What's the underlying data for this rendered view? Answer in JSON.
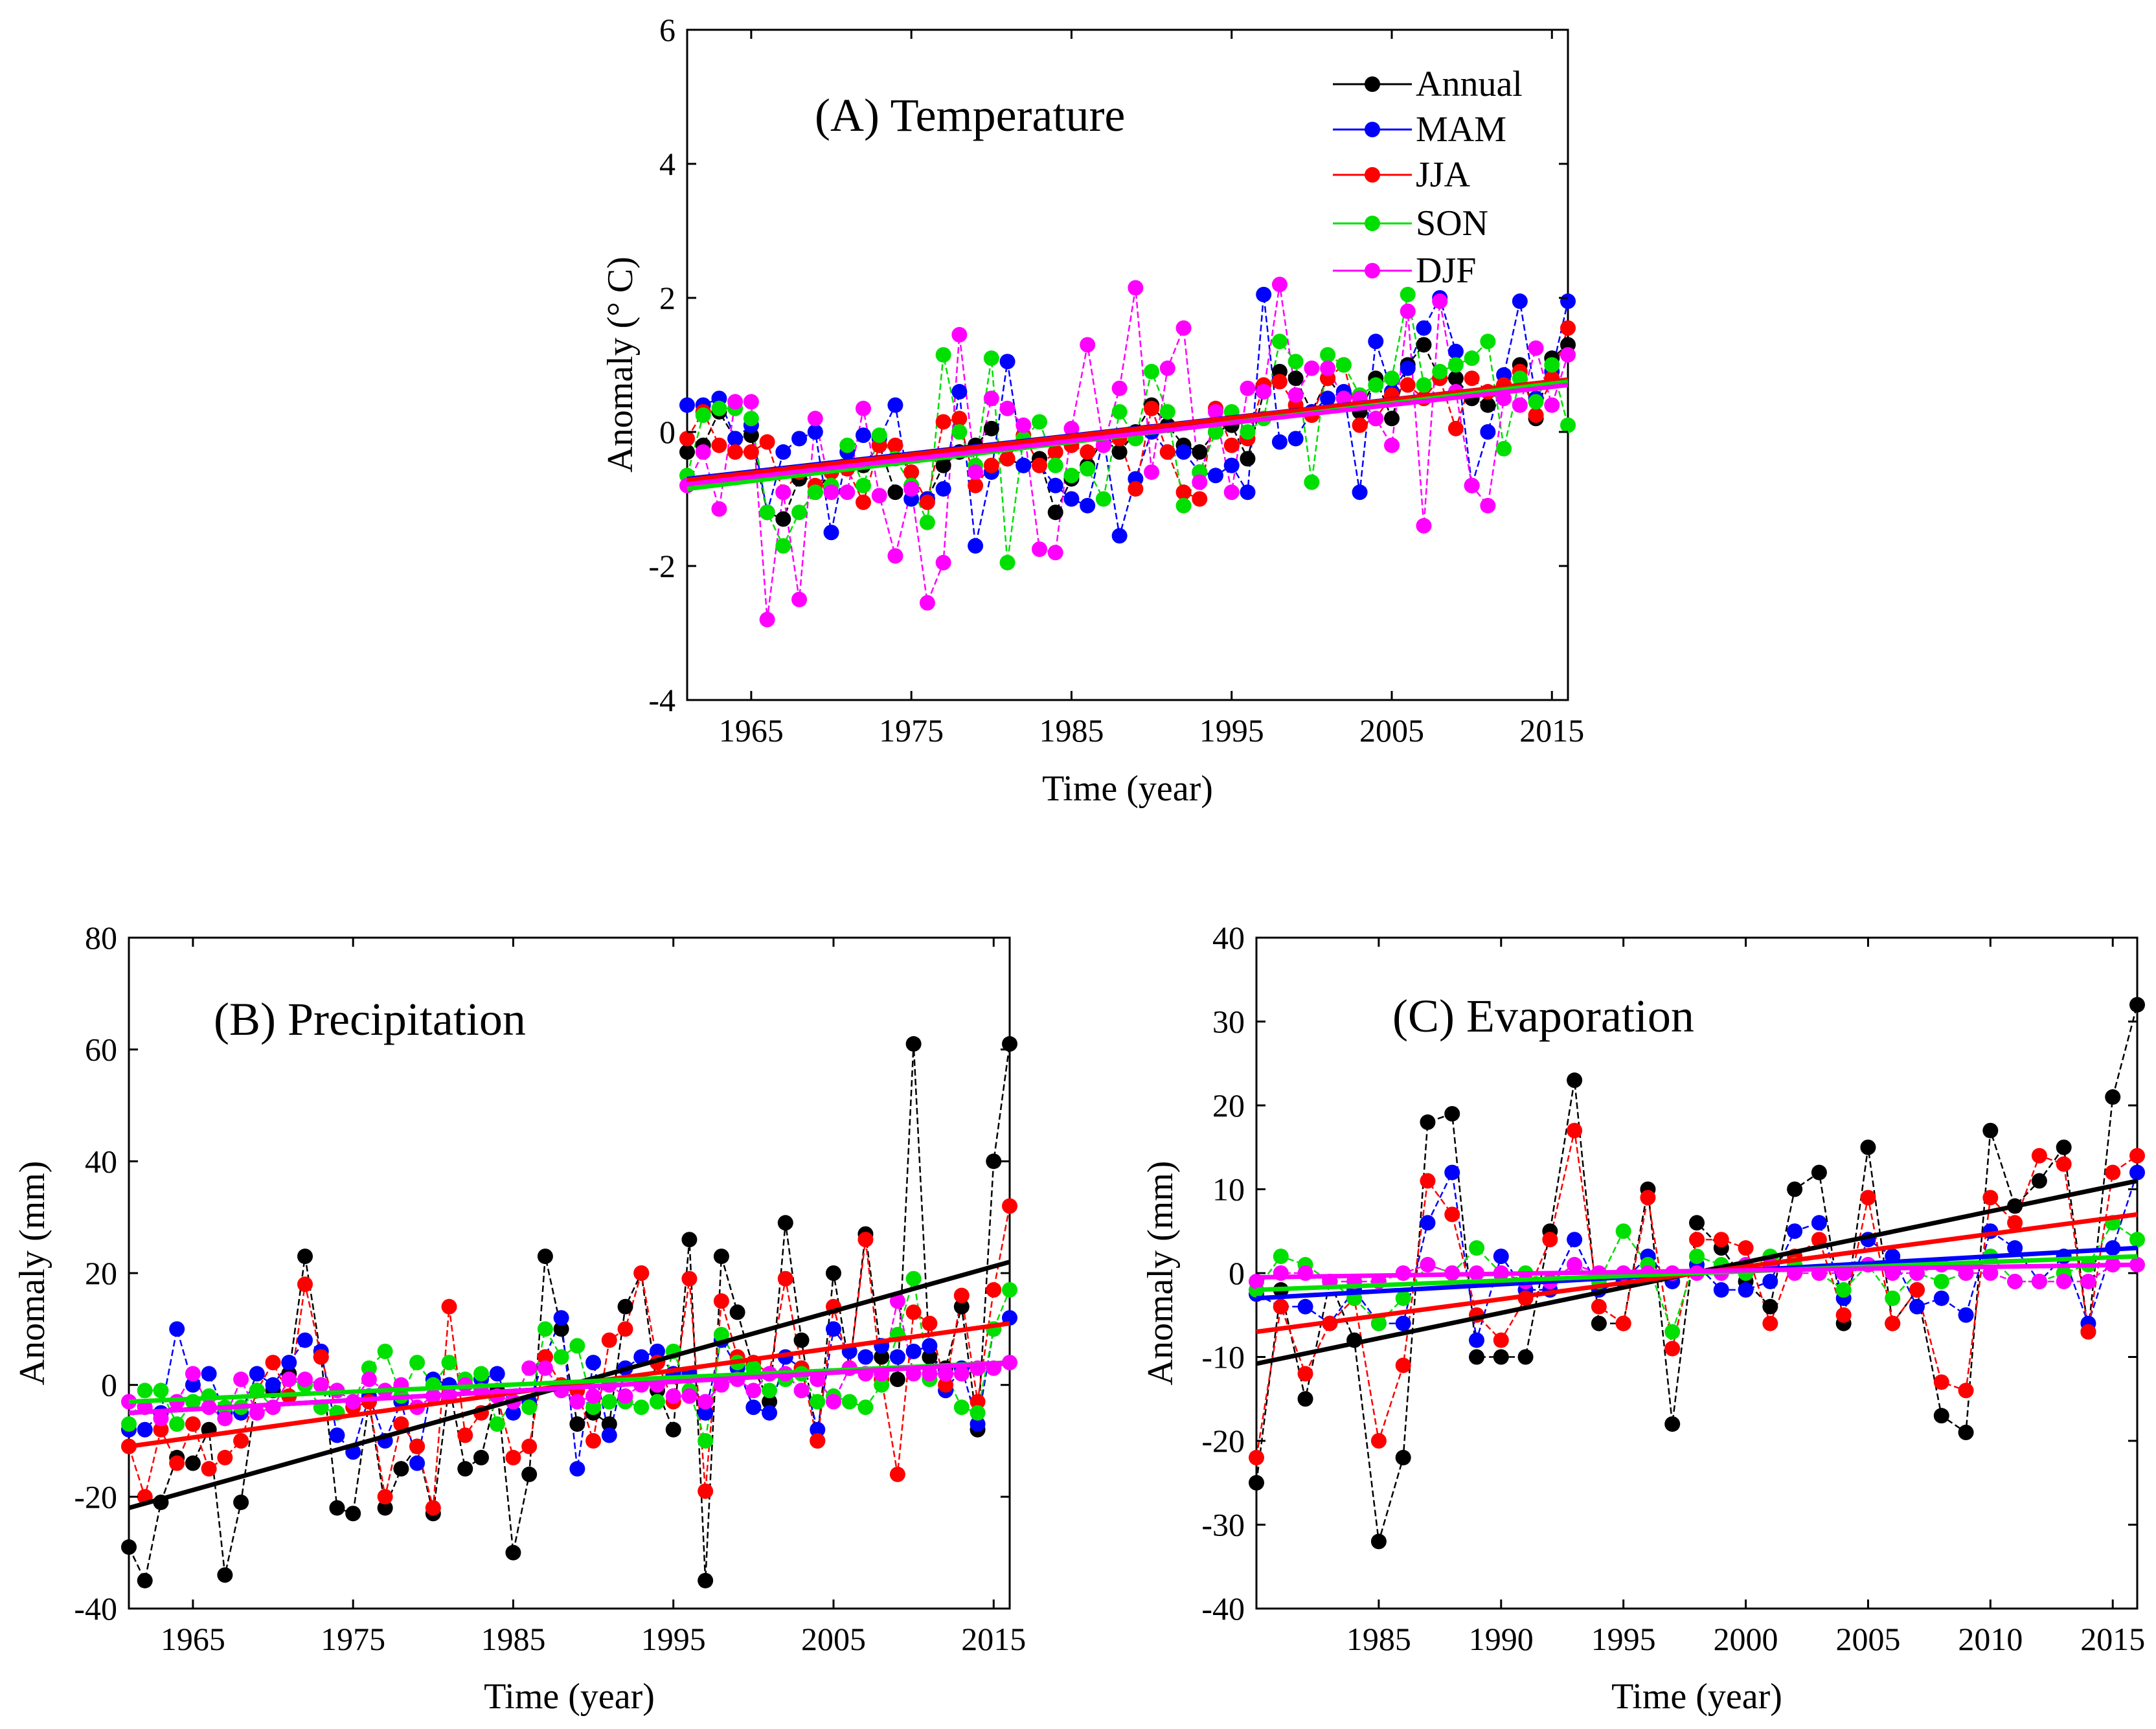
{
  "chart_data": [
    {
      "id": "A",
      "type": "line",
      "title": "(A) Temperature",
      "xlabel": "Time (year)",
      "ylabel": "Anomaly (° C)",
      "xlim": [
        1961,
        2016
      ],
      "ylim": [
        -4,
        6
      ],
      "xticks": [
        1965,
        1975,
        1985,
        1995,
        2005,
        2015
      ],
      "xtick_labels": [
        "1965",
        "1975",
        "1985",
        "1995",
        "2005",
        "2015"
      ],
      "yticks": [
        -4,
        -2,
        0,
        2,
        4,
        6
      ],
      "ytick_labels": [
        "-4",
        "-2",
        "0",
        "2",
        "4",
        "6"
      ],
      "legend_position": "top-right",
      "x": [
        1961,
        1962,
        1963,
        1964,
        1965,
        1966,
        1967,
        1968,
        1969,
        1970,
        1971,
        1972,
        1973,
        1974,
        1975,
        1976,
        1977,
        1978,
        1979,
        1980,
        1981,
        1982,
        1983,
        1984,
        1985,
        1986,
        1987,
        1988,
        1989,
        1990,
        1991,
        1992,
        1993,
        1994,
        1995,
        1996,
        1997,
        1998,
        1999,
        2000,
        2001,
        2002,
        2003,
        2004,
        2005,
        2006,
        2007,
        2008,
        2009,
        2010,
        2011,
        2012,
        2013,
        2014,
        2015,
        2016
      ],
      "series": [
        {
          "name": "Annual",
          "color": "#000000",
          "values": [
            -0.3,
            -0.2,
            0.3,
            -0.1,
            -0.05,
            -1.2,
            -1.3,
            -0.7,
            -0.9,
            -0.6,
            -0.5,
            -0.5,
            -0.2,
            -0.9,
            -0.8,
            -1.0,
            -0.5,
            -0.3,
            -0.2,
            0.05,
            -0.4,
            -0.5,
            -0.4,
            -1.2,
            -0.7,
            -0.5,
            -0.1,
            -0.3,
            0.0,
            0.4,
            0.1,
            -0.2,
            -0.3,
            0.0,
            0.1,
            -0.4,
            0.6,
            0.9,
            0.8,
            0.3,
            0.8,
            0.5,
            0.3,
            0.8,
            0.2,
            1.0,
            1.3,
            0.8,
            0.8,
            0.5,
            0.4,
            0.7,
            1.0,
            0.2,
            1.1,
            1.3
          ],
          "trend": [
            -0.75,
            0.72
          ]
        },
        {
          "name": "MAM",
          "color": "#0000ff",
          "values": [
            0.4,
            0.4,
            0.5,
            -0.1,
            0.1,
            -1.2,
            -0.3,
            -0.1,
            0.0,
            -1.5,
            -0.3,
            -0.05,
            -0.1,
            0.4,
            -1.0,
            -1.0,
            -0.85,
            0.6,
            -1.7,
            -0.6,
            1.05,
            -0.5,
            -0.5,
            -0.8,
            -1.0,
            -1.1,
            -0.1,
            -1.55,
            -0.7,
            0.0,
            -0.3,
            -0.3,
            -0.6,
            -0.65,
            -0.5,
            -0.9,
            2.05,
            -0.15,
            -0.1,
            0.3,
            0.5,
            0.6,
            -0.9,
            1.35,
            0.6,
            0.95,
            1.55,
            2.0,
            1.2,
            -0.8,
            0.0,
            0.85,
            1.95,
            0.5,
            0.9,
            1.95
          ],
          "trend": [
            -0.7,
            0.78
          ]
        },
        {
          "name": "JJA",
          "color": "#ff0000",
          "values": [
            -0.1,
            0.3,
            -0.2,
            -0.3,
            -0.3,
            -0.15,
            -0.9,
            -0.6,
            -0.8,
            -0.6,
            -0.55,
            -1.05,
            -0.2,
            -0.2,
            -0.6,
            -1.05,
            0.15,
            0.2,
            -0.8,
            -0.5,
            -0.4,
            -0.05,
            -0.5,
            -0.3,
            -0.2,
            -0.3,
            -0.2,
            -0.1,
            -0.85,
            0.35,
            -0.3,
            -0.9,
            -1.0,
            0.35,
            -0.2,
            -0.1,
            0.7,
            0.75,
            0.4,
            0.25,
            0.8,
            1.0,
            0.1,
            0.2,
            0.55,
            0.7,
            0.5,
            0.8,
            0.05,
            0.8,
            0.6,
            0.7,
            0.9,
            0.25,
            0.8,
            1.55
          ],
          "trend": [
            -0.72,
            0.78
          ]
        },
        {
          "name": "SON",
          "color": "#00e000",
          "values": [
            -0.65,
            0.25,
            0.35,
            0.35,
            0.2,
            -1.2,
            -1.7,
            -1.2,
            -0.9,
            -0.8,
            -0.2,
            -0.8,
            -0.05,
            -0.4,
            -0.8,
            -1.35,
            1.15,
            0.0,
            -0.5,
            1.1,
            -1.95,
            -0.1,
            0.15,
            -0.5,
            -0.65,
            -0.55,
            -1.0,
            0.3,
            -0.1,
            0.9,
            0.3,
            -1.1,
            -0.6,
            0.0,
            0.3,
            0.0,
            0.2,
            1.35,
            1.05,
            -0.75,
            1.15,
            1.0,
            0.55,
            0.7,
            0.8,
            2.05,
            0.7,
            0.9,
            1.0,
            1.1,
            1.35,
            -0.25,
            0.8,
            0.45,
            1.0,
            0.1
          ],
          "trend": [
            -0.85,
            0.75
          ]
        },
        {
          "name": "DJF",
          "color": "#ff00ff",
          "values": [
            -0.8,
            -0.3,
            -1.15,
            0.45,
            0.45,
            -2.8,
            -0.9,
            -2.5,
            0.2,
            -0.9,
            -0.9,
            0.35,
            -0.95,
            -1.85,
            -0.85,
            -2.55,
            -1.95,
            1.45,
            -0.6,
            0.5,
            0.35,
            0.1,
            -1.75,
            -1.8,
            0.05,
            1.3,
            -0.2,
            0.65,
            2.15,
            -0.6,
            0.95,
            1.55,
            -0.75,
            0.3,
            -0.9,
            0.65,
            0.6,
            2.2,
            0.55,
            0.95,
            0.95,
            0.5,
            0.5,
            0.2,
            -0.2,
            1.8,
            -1.4,
            1.95,
            0.6,
            -0.8,
            -1.1,
            0.5,
            0.4,
            1.25,
            0.4,
            1.15
          ],
          "trend": [
            -0.78,
            0.7
          ]
        }
      ]
    },
    {
      "id": "B",
      "type": "line",
      "title": "(B) Precipitation",
      "xlabel": "Time (year)",
      "ylabel": "Anomaly (mm)",
      "xlim": [
        1961,
        2016
      ],
      "ylim": [
        -40,
        80
      ],
      "xticks": [
        1965,
        1975,
        1985,
        1995,
        2005,
        2015
      ],
      "xtick_labels": [
        "1965",
        "1975",
        "1985",
        "1995",
        "2005",
        "2015"
      ],
      "yticks": [
        -40,
        -20,
        0,
        20,
        40,
        60,
        80
      ],
      "ytick_labels": [
        "-40",
        "-20",
        "0",
        "20",
        "40",
        "60",
        "80"
      ],
      "x": [
        1961,
        1962,
        1963,
        1964,
        1965,
        1966,
        1967,
        1968,
        1969,
        1970,
        1971,
        1972,
        1973,
        1974,
        1975,
        1976,
        1977,
        1978,
        1979,
        1980,
        1981,
        1982,
        1983,
        1984,
        1985,
        1986,
        1987,
        1988,
        1989,
        1990,
        1991,
        1992,
        1993,
        1994,
        1995,
        1996,
        1997,
        1998,
        1999,
        2000,
        2001,
        2002,
        2003,
        2004,
        2005,
        2006,
        2007,
        2008,
        2009,
        2010,
        2011,
        2012,
        2013,
        2014,
        2015,
        2016
      ],
      "series": [
        {
          "name": "Annual",
          "color": "#000000",
          "values": [
            -29,
            -35,
            -21,
            -13,
            -14,
            -8,
            -34,
            -21,
            -1,
            -1,
            2,
            23,
            5,
            -22,
            -23,
            -3,
            -22,
            -15,
            -11,
            -23,
            0,
            -15,
            -13,
            -1,
            -30,
            -16,
            23,
            10,
            -7,
            -5,
            -7,
            14,
            20,
            -1,
            -8,
            26,
            -35,
            23,
            13,
            3,
            -3,
            29,
            8,
            -10,
            20,
            3,
            27,
            5,
            1,
            61,
            5,
            3,
            14,
            -8,
            40,
            61
          ],
          "trend": [
            -22,
            22
          ]
        },
        {
          "name": "MAM",
          "color": "#0000ff",
          "values": [
            -8,
            -8,
            -5,
            10,
            0,
            2,
            -5,
            -5,
            2,
            0,
            4,
            8,
            6,
            -9,
            -12,
            -2,
            -10,
            -3,
            -14,
            1,
            0,
            0,
            1,
            2,
            -5,
            -3,
            5,
            12,
            -15,
            4,
            -9,
            3,
            5,
            6,
            2,
            2,
            -5,
            8,
            3,
            -4,
            -5,
            5,
            3,
            -8,
            10,
            6,
            5,
            7,
            5,
            6,
            7,
            -1,
            3,
            -7,
            10,
            12
          ],
          "trend": [
            -5,
            4
          ]
        },
        {
          "name": "JJA",
          "color": "#ff0000",
          "values": [
            -11,
            -20,
            -8,
            -14,
            -7,
            -15,
            -13,
            -10,
            -1,
            4,
            -2,
            18,
            5,
            -5,
            -4,
            -3,
            -20,
            -7,
            -11,
            -22,
            14,
            -9,
            -5,
            -2,
            -13,
            -11,
            5,
            0,
            -1,
            -10,
            8,
            10,
            20,
            4,
            -3,
            19,
            -19,
            15,
            5,
            4,
            2,
            19,
            3,
            -10,
            14,
            3,
            26,
            1,
            -16,
            13,
            11,
            0,
            16,
            -3,
            17,
            32
          ],
          "trend": [
            -11,
            11
          ]
        },
        {
          "name": "SON",
          "color": "#00e000",
          "values": [
            -7,
            -1,
            -1,
            -7,
            -3,
            -2,
            -4,
            -4,
            -1,
            -4,
            1,
            0,
            -4,
            -5,
            -3,
            3,
            6,
            -2,
            4,
            0,
            4,
            1,
            2,
            -7,
            -3,
            -4,
            10,
            5,
            7,
            -4,
            -3,
            -3,
            -4,
            -3,
            6,
            -1,
            -10,
            9,
            4,
            3,
            -1,
            1,
            2,
            -3,
            -2,
            -3,
            -4,
            0,
            9,
            19,
            1,
            2,
            -4,
            -5,
            10,
            17
          ],
          "trend": [
            -3,
            4
          ]
        },
        {
          "name": "DJF",
          "color": "#ff00ff",
          "values": [
            -3,
            -4,
            -6,
            -3,
            2,
            -4,
            -6,
            1,
            -5,
            -4,
            1,
            1,
            0,
            -1,
            -3,
            1,
            -1,
            0,
            -4,
            -2,
            -2,
            0,
            -1,
            -2,
            -3,
            3,
            3,
            -1,
            -3,
            -2,
            0,
            -2,
            0,
            0,
            -2,
            -2,
            -3,
            0,
            1,
            -1,
            2,
            2,
            -1,
            1,
            -3,
            3,
            2,
            2,
            15,
            2,
            2,
            2,
            2,
            3,
            3,
            4
          ],
          "trend": [
            -5,
            4
          ]
        }
      ]
    },
    {
      "id": "C",
      "type": "line",
      "title": "(C) Evaporation",
      "xlabel": "Time (year)",
      "ylabel": "Anomaly (mm)",
      "xlim": [
        1980,
        2016
      ],
      "ylim": [
        -40,
        40
      ],
      "xticks": [
        1985,
        1990,
        1995,
        2000,
        2005,
        2010,
        2015
      ],
      "xtick_labels": [
        "1985",
        "1990",
        "1995",
        "2000",
        "2005",
        "2010",
        "2015"
      ],
      "yticks": [
        -40,
        -30,
        -20,
        -10,
        0,
        10,
        20,
        30,
        40
      ],
      "ytick_labels": [
        "-40",
        "-30",
        "-20",
        "-10",
        "0",
        "10",
        "20",
        "30",
        "40"
      ],
      "x": [
        1980,
        1981,
        1982,
        1983,
        1984,
        1985,
        1986,
        1987,
        1988,
        1989,
        1990,
        1991,
        1992,
        1993,
        1994,
        1995,
        1996,
        1997,
        1998,
        1999,
        2000,
        2001,
        2002,
        2003,
        2004,
        2005,
        2006,
        2007,
        2008,
        2009,
        2010,
        2011,
        2012,
        2013,
        2014,
        2015,
        2016
      ],
      "series": [
        {
          "name": "Annual",
          "color": "#000000",
          "values": [
            -25,
            -2,
            -15,
            -1,
            -8,
            -32,
            -22,
            18,
            19,
            -10,
            -10,
            -10,
            5,
            23,
            -6,
            -6,
            10,
            -18,
            6,
            3,
            -1,
            -4,
            10,
            12,
            -6,
            15,
            -6,
            -2,
            -17,
            -19,
            17,
            8,
            11,
            15,
            -7,
            21,
            32
          ],
          "trend": [
            -10.8,
            11
          ]
        },
        {
          "name": "MAM",
          "color": "#0000ff",
          "values": [
            -2.5,
            -4,
            -4,
            -6,
            -2,
            -6,
            -6,
            6,
            12,
            -8,
            2,
            -2,
            -2,
            4,
            -2,
            -1,
            2,
            -1,
            1,
            -2,
            -2,
            -1,
            5,
            6,
            -3,
            4,
            2,
            -4,
            -3,
            -5,
            5,
            3,
            -1,
            2,
            -6,
            3,
            12
          ],
          "trend": [
            -3,
            3
          ]
        },
        {
          "name": "JJA",
          "color": "#ff0000",
          "values": [
            -22,
            -4,
            -12,
            -6,
            -3,
            -20,
            -11,
            11,
            7,
            -5,
            -8,
            -3,
            4,
            17,
            -4,
            -6,
            9,
            -9,
            4,
            4,
            3,
            -6,
            2,
            4,
            -5,
            9,
            -6,
            -2,
            -13,
            -14,
            9,
            6,
            14,
            13,
            -7,
            12,
            14
          ],
          "trend": [
            -7,
            7
          ]
        },
        {
          "name": "SON",
          "color": "#00e000",
          "values": [
            -2,
            2,
            1,
            -1,
            -3,
            -6,
            -3,
            1,
            0,
            3,
            0,
            0,
            -1,
            1,
            -1,
            5,
            1,
            -7,
            2,
            1,
            0,
            2,
            1,
            0,
            -2,
            1,
            -3,
            0,
            -1,
            0,
            2,
            -1,
            -1,
            0,
            1,
            6,
            4
          ],
          "trend": [
            -2,
            2
          ]
        },
        {
          "name": "DJF",
          "color": "#ff00ff",
          "values": [
            -1,
            0,
            0,
            -1,
            -1,
            -1,
            0,
            1,
            0,
            0,
            0,
            -1,
            -1,
            1,
            0,
            0,
            0,
            0,
            0,
            0,
            1,
            1,
            0,
            0,
            0,
            1,
            0,
            0,
            1,
            0,
            0,
            -1,
            -1,
            -1,
            -1,
            1,
            1
          ],
          "trend": [
            -0.5,
            1.0
          ]
        }
      ]
    }
  ]
}
